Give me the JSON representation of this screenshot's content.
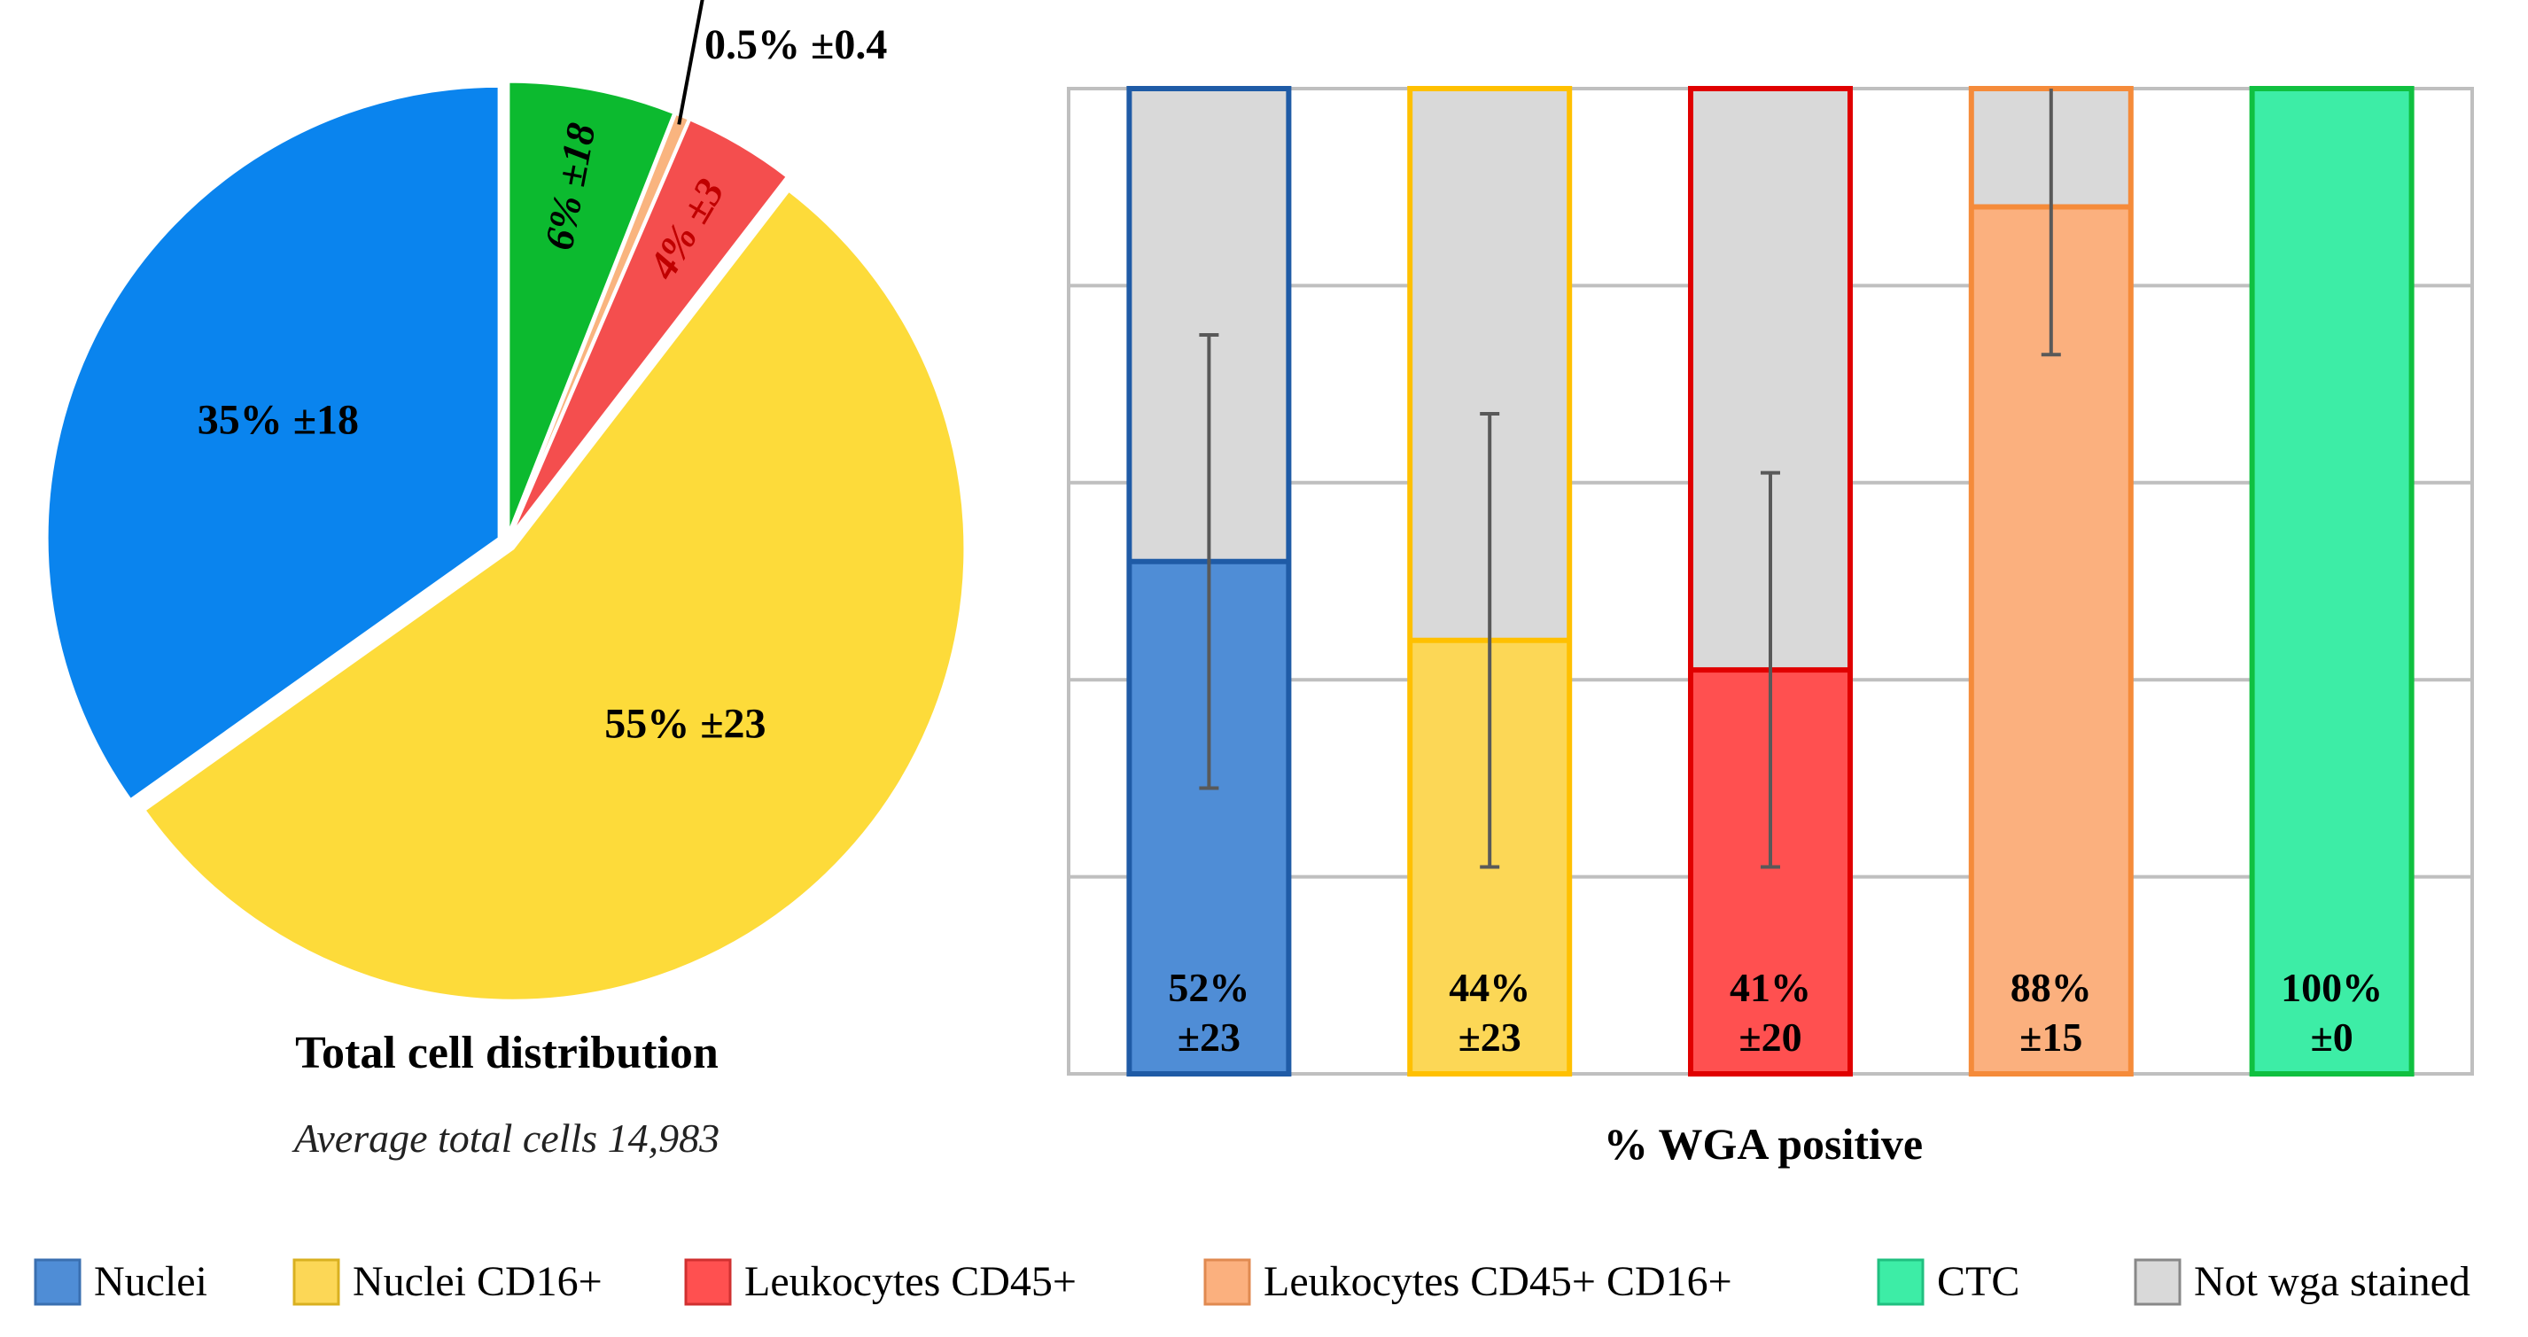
{
  "chart_data": [
    {
      "type": "pie",
      "title": "Total cell distribution",
      "subtitle": "Average total cells 14,983",
      "slices": [
        {
          "name": "Nuclei",
          "value": 35,
          "label": "35% ±18",
          "color": "#0a84ee",
          "label_color": "#000000",
          "label_style": "normal"
        },
        {
          "name": "Nuclei CD16+",
          "value": 55,
          "label": "55% ±23",
          "color": "#fddb3a",
          "label_color": "#000000",
          "label_style": "normal"
        },
        {
          "name": "Leukocytes CD45+",
          "value": 4,
          "label": "4% ±3",
          "color": "#f44e4e",
          "label_color": "#c00000",
          "label_style": "italic"
        },
        {
          "name": "Leukocytes CD45+ CD16+",
          "value": 0.5,
          "label": "0.5% ±0.4",
          "color": "#f9b47f",
          "label_color": "#000000",
          "label_style": "callout"
        },
        {
          "name": "CTC",
          "value": 6,
          "label": "6% ±18",
          "color": "#0cba2f",
          "label_color": "#000000",
          "label_style": "italic"
        }
      ]
    },
    {
      "type": "bar",
      "stacked": true,
      "xlabel": "% WGA positive",
      "ylim": [
        0,
        100
      ],
      "grid": true,
      "categories": [
        "Nuclei",
        "Nuclei CD16+",
        "Leukocytes CD45+",
        "Leukocytes CD45+ CD16+",
        "CTC"
      ],
      "series": [
        {
          "name": "WGA positive",
          "values": [
            52,
            44,
            41,
            88,
            100
          ],
          "errors": [
            23,
            23,
            20,
            15,
            0
          ]
        },
        {
          "name": "Not wga stained",
          "values": [
            48,
            56,
            59,
            12,
            0
          ]
        }
      ],
      "fill_colors": [
        "#4f8dd6",
        "#fcd756",
        "#ff5050",
        "#fbb07e",
        "#3deda6"
      ],
      "edge_colors": [
        "#1f5ba6",
        "#ffc000",
        "#e00000",
        "#f58b3a",
        "#10c040"
      ],
      "remainder_color": "#d9d9d9",
      "bar_labels": [
        [
          "52%",
          "±23"
        ],
        [
          "44%",
          "±23"
        ],
        [
          "41%",
          "±20"
        ],
        [
          "88%",
          "±15"
        ],
        [
          "100%",
          "±0"
        ]
      ]
    }
  ],
  "legend": [
    {
      "label": "Nuclei",
      "color": "#4f8dd6",
      "border": "#3a6fb0"
    },
    {
      "label": "Nuclei CD16+",
      "color": "#fcd756",
      "border": "#d9b020"
    },
    {
      "label": "Leukocytes CD45+",
      "color": "#ff5050",
      "border": "#d03030"
    },
    {
      "label": "Leukocytes CD45+ CD16+",
      "color": "#fbb07e",
      "border": "#e08a50"
    },
    {
      "label": "CTC",
      "color": "#3deda6",
      "border": "#20c080"
    },
    {
      "label": "Not wga stained",
      "color": "#d9d9d9",
      "border": "#888888"
    }
  ]
}
